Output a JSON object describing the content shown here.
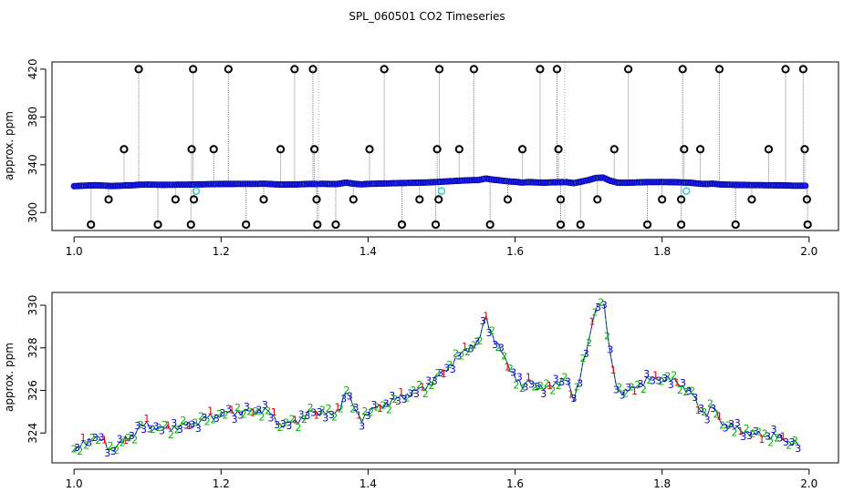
{
  "title": "SPL_060501  CO2 Timeseries",
  "colors": {
    "outlier": "#000000",
    "fill": "#1a1aff",
    "marker2": "#00b000",
    "marker1": "#e00000",
    "marker3": "#0000cc",
    "cyan": "#33cccc",
    "stem": "#808080"
  },
  "chart_data": [
    {
      "type": "scatter",
      "ylabel": "approx. ppm",
      "xlim": [
        0.97,
        2.04
      ],
      "ylim": [
        285,
        426
      ],
      "x_ticks": [
        1.0,
        1.2,
        1.4,
        1.6,
        1.8,
        2.0
      ],
      "x_tick_labels": [
        "1.0",
        "1.2",
        "1.4",
        "1.6",
        "1.8",
        "2.0"
      ],
      "y_ticks": [
        300,
        340,
        380,
        420
      ],
      "y_tick_labels": [
        "300",
        "340",
        "380",
        "420"
      ],
      "segments": [
        [
          1.0,
          1.33
        ],
        [
          1.335,
          1.665
        ],
        [
          1.67,
          1.995
        ]
      ],
      "baseline_note": "dense blue series near 323-330 ppm, same shape as lower panel",
      "outliers_high": [
        {
          "x": 1.088,
          "y": 420
        },
        {
          "x": 1.162,
          "y": 420
        },
        {
          "x": 1.21,
          "y": 420
        },
        {
          "x": 1.3,
          "y": 420
        },
        {
          "x": 1.325,
          "y": 420
        },
        {
          "x": 1.422,
          "y": 420
        },
        {
          "x": 1.497,
          "y": 420
        },
        {
          "x": 1.544,
          "y": 420
        },
        {
          "x": 1.634,
          "y": 420
        },
        {
          "x": 1.657,
          "y": 420
        },
        {
          "x": 1.754,
          "y": 420
        },
        {
          "x": 1.828,
          "y": 420
        },
        {
          "x": 1.878,
          "y": 420
        },
        {
          "x": 1.968,
          "y": 420
        },
        {
          "x": 1.992,
          "y": 420
        },
        {
          "x": 1.068,
          "y": 353
        },
        {
          "x": 1.16,
          "y": 353
        },
        {
          "x": 1.19,
          "y": 353
        },
        {
          "x": 1.281,
          "y": 353
        },
        {
          "x": 1.327,
          "y": 353
        },
        {
          "x": 1.402,
          "y": 353
        },
        {
          "x": 1.494,
          "y": 353
        },
        {
          "x": 1.524,
          "y": 353
        },
        {
          "x": 1.61,
          "y": 353
        },
        {
          "x": 1.659,
          "y": 353
        },
        {
          "x": 1.735,
          "y": 353
        },
        {
          "x": 1.83,
          "y": 353
        },
        {
          "x": 1.852,
          "y": 353
        },
        {
          "x": 1.945,
          "y": 353
        },
        {
          "x": 1.994,
          "y": 353
        }
      ],
      "outliers_low": [
        {
          "x": 1.047,
          "y": 311
        },
        {
          "x": 1.138,
          "y": 311
        },
        {
          "x": 1.163,
          "y": 311
        },
        {
          "x": 1.258,
          "y": 311
        },
        {
          "x": 1.33,
          "y": 311
        },
        {
          "x": 1.38,
          "y": 311
        },
        {
          "x": 1.47,
          "y": 311
        },
        {
          "x": 1.496,
          "y": 311
        },
        {
          "x": 1.59,
          "y": 311
        },
        {
          "x": 1.662,
          "y": 311
        },
        {
          "x": 1.712,
          "y": 311
        },
        {
          "x": 1.8,
          "y": 311
        },
        {
          "x": 1.826,
          "y": 311
        },
        {
          "x": 1.922,
          "y": 311
        },
        {
          "x": 1.997,
          "y": 311
        },
        {
          "x": 1.023,
          "y": 290
        },
        {
          "x": 1.114,
          "y": 290
        },
        {
          "x": 1.159,
          "y": 290
        },
        {
          "x": 1.234,
          "y": 290
        },
        {
          "x": 1.331,
          "y": 290
        },
        {
          "x": 1.356,
          "y": 290
        },
        {
          "x": 1.446,
          "y": 290
        },
        {
          "x": 1.492,
          "y": 290
        },
        {
          "x": 1.566,
          "y": 290
        },
        {
          "x": 1.662,
          "y": 290
        },
        {
          "x": 1.689,
          "y": 290
        },
        {
          "x": 1.78,
          "y": 290
        },
        {
          "x": 1.826,
          "y": 290
        },
        {
          "x": 1.9,
          "y": 290
        },
        {
          "x": 1.998,
          "y": 290
        }
      ],
      "cyan_points": [
        {
          "x": 1.166,
          "y": 318
        },
        {
          "x": 1.5,
          "y": 318
        },
        {
          "x": 1.833,
          "y": 318
        }
      ]
    },
    {
      "type": "line",
      "ylabel": "approx. ppm",
      "xlim": [
        0.97,
        2.04
      ],
      "ylim": [
        322.6,
        330.6
      ],
      "x_ticks": [
        1.0,
        1.2,
        1.4,
        1.6,
        1.8,
        2.0
      ],
      "x_tick_labels": [
        "1.0",
        "1.2",
        "1.4",
        "1.6",
        "1.8",
        "2.0"
      ],
      "y_ticks": [
        324,
        326,
        328,
        330
      ],
      "y_tick_labels": [
        "324",
        "326",
        "328",
        "330"
      ],
      "series_marker_labels": [
        "1",
        "2",
        "3"
      ],
      "x": [
        1.0,
        1.01,
        1.02,
        1.03,
        1.04,
        1.05,
        1.06,
        1.07,
        1.08,
        1.09,
        1.1,
        1.12,
        1.14,
        1.16,
        1.18,
        1.2,
        1.22,
        1.24,
        1.26,
        1.27,
        1.28,
        1.3,
        1.31,
        1.32,
        1.33,
        1.34,
        1.35,
        1.36,
        1.37,
        1.38,
        1.39,
        1.4,
        1.42,
        1.44,
        1.46,
        1.48,
        1.5,
        1.52,
        1.54,
        1.55,
        1.56,
        1.57,
        1.58,
        1.59,
        1.6,
        1.61,
        1.62,
        1.63,
        1.64,
        1.65,
        1.66,
        1.67,
        1.68,
        1.69,
        1.7,
        1.71,
        1.72,
        1.73,
        1.74,
        1.75,
        1.76,
        1.78,
        1.8,
        1.82,
        1.84,
        1.85,
        1.86,
        1.87,
        1.88,
        1.9,
        1.92,
        1.94,
        1.96,
        1.98
      ],
      "y": [
        323.1,
        323.4,
        323.7,
        323.8,
        323.6,
        323.2,
        323.4,
        323.7,
        323.9,
        324.3,
        324.4,
        324.2,
        324.3,
        324.4,
        324.7,
        324.9,
        325.0,
        325.0,
        325.1,
        324.8,
        324.4,
        324.5,
        324.7,
        325.0,
        324.9,
        325.1,
        324.8,
        325.0,
        326.1,
        325.2,
        324.6,
        325.0,
        325.3,
        325.6,
        325.9,
        326.2,
        326.8,
        327.5,
        328.1,
        328.2,
        329.5,
        328.5,
        327.9,
        327.2,
        326.7,
        326.1,
        326.5,
        326.2,
        326.0,
        326.3,
        326.4,
        326.5,
        325.6,
        326.9,
        328.2,
        330.0,
        330.2,
        327.5,
        326.0,
        325.9,
        326.1,
        326.5,
        326.6,
        326.4,
        325.9,
        325.2,
        324.9,
        325.2,
        324.5,
        324.2,
        324.0,
        323.9,
        323.8,
        323.5
      ]
    }
  ]
}
